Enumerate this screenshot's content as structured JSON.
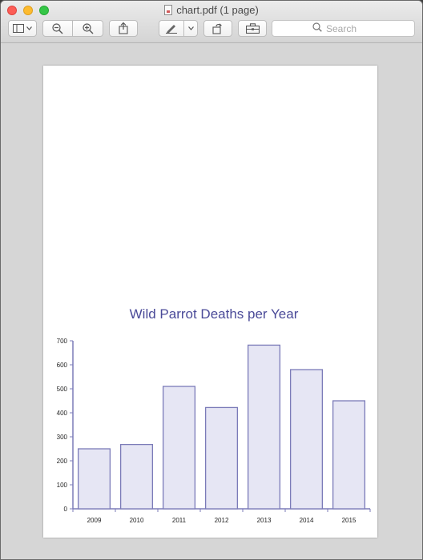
{
  "window": {
    "title": "chart.pdf (1 page)"
  },
  "toolbar": {
    "sidebar_icon": "sidebar-icon",
    "zoom_out_icon": "zoom-out-icon",
    "zoom_in_icon": "zoom-in-icon",
    "share_icon": "share-icon",
    "markup_icon": "pen-icon",
    "rotate_icon": "rotate-icon",
    "toolbox_icon": "toolbox-icon",
    "search_placeholder": "Search"
  },
  "chart_data": {
    "type": "bar",
    "title": "Wild Parrot Deaths per Year",
    "xlabel": "",
    "ylabel": "",
    "categories": [
      "2009",
      "2010",
      "2011",
      "2012",
      "2013",
      "2014",
      "2015"
    ],
    "values": [
      250,
      268,
      510,
      422,
      682,
      580,
      450
    ],
    "ylim": [
      0,
      700
    ],
    "yticks": [
      0,
      100,
      200,
      300,
      400,
      500,
      600,
      700
    ],
    "grid": false,
    "colors": {
      "fill": "#e6e6f4",
      "stroke": "#7b7bb8",
      "title": "#4a4a98"
    }
  }
}
